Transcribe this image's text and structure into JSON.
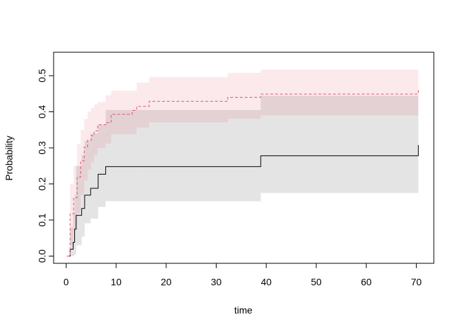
{
  "chart_data": {
    "type": "line",
    "step": true,
    "title": "",
    "xlabel": "time",
    "ylabel": "Probability",
    "xlim": [
      -2.5,
      73.5
    ],
    "ylim": [
      -0.02,
      0.565
    ],
    "xticks": [
      0,
      10,
      20,
      30,
      40,
      50,
      60,
      70
    ],
    "yticks": [
      0.0,
      0.1,
      0.2,
      0.3,
      0.4,
      0.5
    ],
    "ytick_labels": [
      "0.0",
      "0.1",
      "0.2",
      "0.3",
      "0.4",
      "0.5"
    ],
    "grid": false,
    "legend": "none",
    "series": [
      {
        "color": "#000000",
        "band_color": "#bebebe",
        "line_style": "solid",
        "x": [
          0.3,
          0.8,
          1.4,
          1.7,
          2.0,
          3.1,
          3.7,
          4.9,
          6.4,
          7.9,
          14.1,
          32.3,
          38.9,
          70.4
        ],
        "y": [
          0,
          0.019,
          0.038,
          0.075,
          0.113,
          0.132,
          0.169,
          0.188,
          0.227,
          0.248,
          0.248,
          0.248,
          0.278,
          0.308
        ],
        "lower": [
          0,
          0,
          0,
          0.005,
          0.03,
          0.054,
          0.091,
          0.104,
          0.136,
          0.152,
          0.152,
          0.152,
          0.175,
          0.175
        ],
        "upper": [
          0,
          0.08,
          0.12,
          0.17,
          0.25,
          0.28,
          0.32,
          0.34,
          0.364,
          0.405,
          0.405,
          0.405,
          0.444,
          0.444
        ]
      },
      {
        "color": "#DF536B",
        "band_color": "#DF536B",
        "line_style": "dashed",
        "x": [
          0.1,
          0.8,
          1.5,
          2.2,
          2.9,
          3.6,
          4.3,
          5.0,
          5.6,
          6.3,
          7.9,
          9.0,
          13.2,
          14.1,
          16.6,
          32.3,
          38.9,
          70.4
        ],
        "y": [
          0,
          0.117,
          0.162,
          0.219,
          0.264,
          0.302,
          0.321,
          0.334,
          0.347,
          0.364,
          0.37,
          0.393,
          0.404,
          0.415,
          0.429,
          0.44,
          0.449,
          0.463
        ],
        "lower": [
          0,
          0.03,
          0.07,
          0.12,
          0.17,
          0.21,
          0.24,
          0.26,
          0.28,
          0.3,
          0.312,
          0.338,
          0.338,
          0.356,
          0.371,
          0.381,
          0.39,
          0.39
        ],
        "upper": [
          0,
          0.2,
          0.25,
          0.31,
          0.35,
          0.38,
          0.4,
          0.41,
          0.42,
          0.427,
          0.446,
          0.458,
          0.458,
          0.481,
          0.496,
          0.508,
          0.517,
          0.517
        ]
      }
    ]
  }
}
